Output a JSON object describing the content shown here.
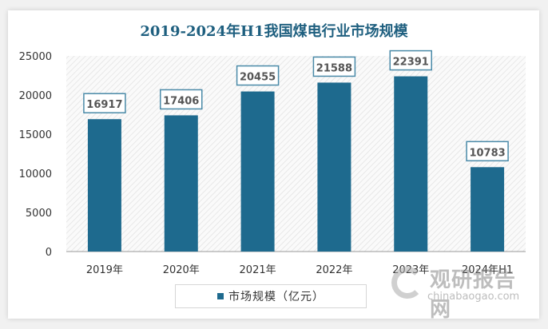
{
  "chart_data": {
    "type": "bar",
    "title": "2019-2024年H1我国煤电行业市场规模",
    "categories": [
      "2019年",
      "2020年",
      "2021年",
      "2022年",
      "2023年",
      "2024年H1"
    ],
    "series": [
      {
        "name": "市场规模（亿元）",
        "values": [
          16917,
          17406,
          20455,
          21588,
          22391,
          10783
        ]
      }
    ],
    "ylim": [
      0,
      25000
    ],
    "yticks": [
      0,
      5000,
      10000,
      15000,
      20000,
      25000
    ],
    "xlabel": "",
    "ylabel": "",
    "grid": false,
    "legend": "bottom",
    "colors": {
      "bar": "#1e6a8e",
      "title": "#1e5f7f",
      "label_border": "#4a8aa8"
    }
  },
  "watermark": {
    "cn": "观研报告网",
    "en": "chinabaogao.com"
  }
}
